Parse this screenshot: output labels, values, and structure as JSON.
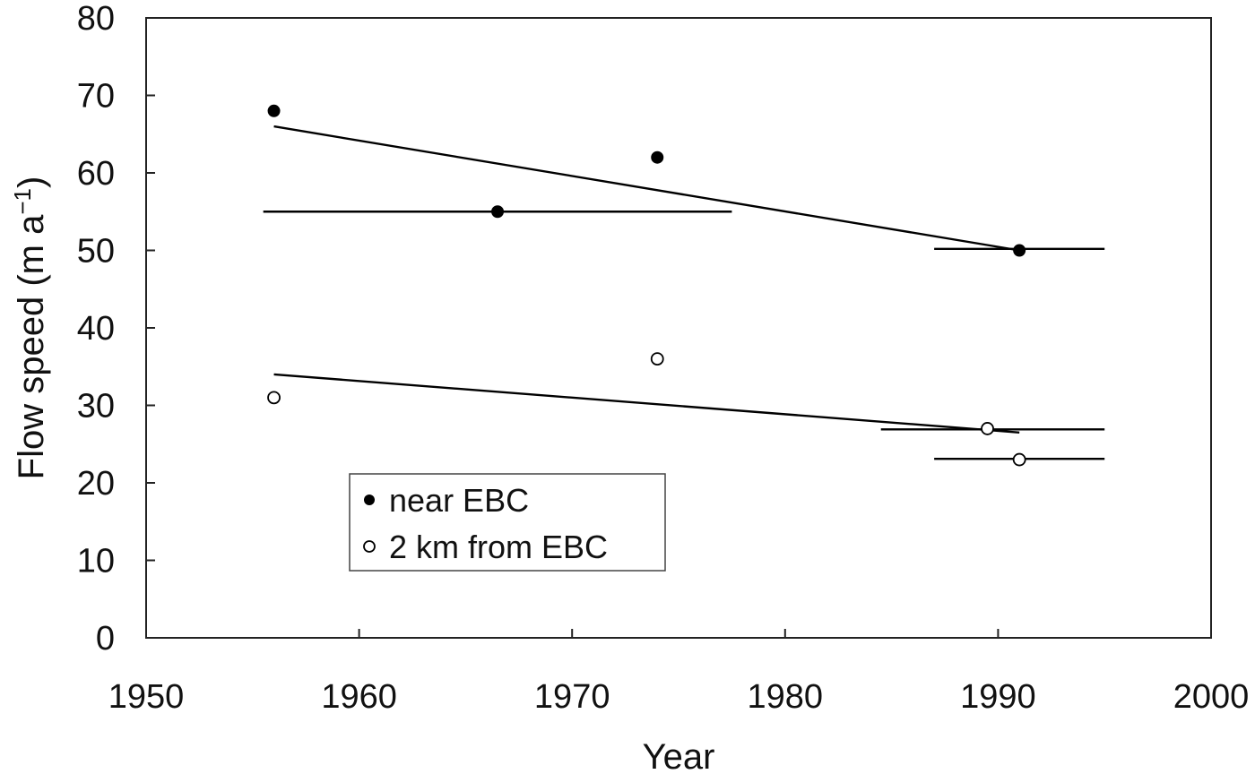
{
  "chart_data": {
    "type": "scatter",
    "title": "",
    "xlabel": "Year",
    "ylabel_main": "Flow speed (m a",
    "ylabel_sup": "−1",
    "ylabel_close": ")",
    "xlim": [
      1950,
      2000
    ],
    "ylim": [
      0,
      80
    ],
    "x_ticks": [
      1950,
      1960,
      1970,
      1980,
      1990,
      2000
    ],
    "y_ticks": [
      0,
      10,
      20,
      30,
      40,
      50,
      60,
      70,
      80
    ],
    "grid": false,
    "legend_position": "bottom-left",
    "series": [
      {
        "name": "near EBC",
        "marker": "filled-circle",
        "points": [
          {
            "x": 1956,
            "y": 68
          },
          {
            "x": 1966.5,
            "y": 55
          },
          {
            "x": 1974,
            "y": 62
          },
          {
            "x": 1991,
            "y": 50
          }
        ],
        "trend": {
          "x": [
            1956,
            1991
          ],
          "y": [
            66,
            50
          ]
        }
      },
      {
        "name": "2 km from EBC",
        "marker": "open-circle",
        "points": [
          {
            "x": 1956,
            "y": 31
          },
          {
            "x": 1974,
            "y": 36
          },
          {
            "x": 1989.5,
            "y": 27
          },
          {
            "x": 1991,
            "y": 23
          }
        ],
        "trend": {
          "x": [
            1956,
            1991
          ],
          "y": [
            34,
            26.5
          ]
        }
      }
    ],
    "horizontal_spans": [
      {
        "y": 55,
        "x": [
          1955.5,
          1977.5
        ]
      },
      {
        "y": 50.2,
        "x": [
          1987,
          1995
        ]
      },
      {
        "y": 26.9,
        "x": [
          1984.5,
          1995
        ]
      },
      {
        "y": 23.1,
        "x": [
          1987,
          1995
        ]
      }
    ]
  }
}
